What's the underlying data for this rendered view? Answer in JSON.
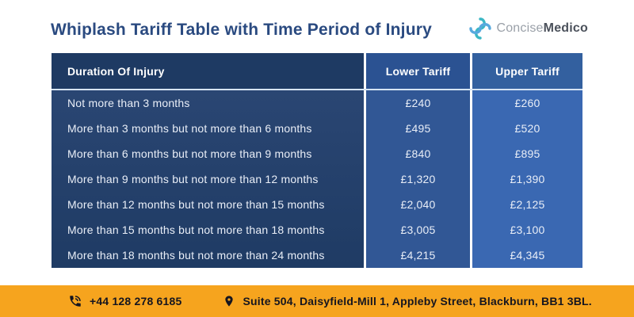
{
  "header": {
    "title": "Whiplash Tariff Table with Time Period of Injury",
    "logo": {
      "part1": "Concise",
      "part2": "Medico"
    }
  },
  "table": {
    "columns": [
      {
        "label": "Duration Of Injury"
      },
      {
        "label": "Lower Tariff"
      },
      {
        "label": "Upper Tariff"
      }
    ],
    "rows": [
      {
        "duration": "Not more than 3 months",
        "lower": "£240",
        "upper": "£260"
      },
      {
        "duration": "More than 3 months but not more than 6 months",
        "lower": "£495",
        "upper": "£520"
      },
      {
        "duration": "More than 6 months but not more than 9 months",
        "lower": "£840",
        "upper": "£895"
      },
      {
        "duration": "More than 9 months but not more than 12 months",
        "lower": "£1,320",
        "upper": "£1,390"
      },
      {
        "duration": "More than 12 months but not more than 15 months",
        "lower": "£2,040",
        "upper": "£2,125"
      },
      {
        "duration": "More than 15 months but not more than 18 months",
        "lower": "£3,005",
        "upper": "£3,100"
      },
      {
        "duration": "More than 18 months but not more than 24 months",
        "lower": "£4,215",
        "upper": "£4,345"
      }
    ]
  },
  "footer": {
    "phone": "+44 128 278 6185",
    "address": "Suite 504, Daisyfield-Mill 1, Appleby Street, Blackburn, BB1 3BL."
  },
  "colors": {
    "title": "#2a4a80",
    "duration_column": "#1e3a63",
    "lower_column": "#2b5292",
    "upper_column": "#3a68b2",
    "header_divider": "#d6e4f4",
    "footer_bg": "#f6a41e",
    "logo_teal": "#3bb7c4",
    "logo_blue": "#58a9de"
  }
}
